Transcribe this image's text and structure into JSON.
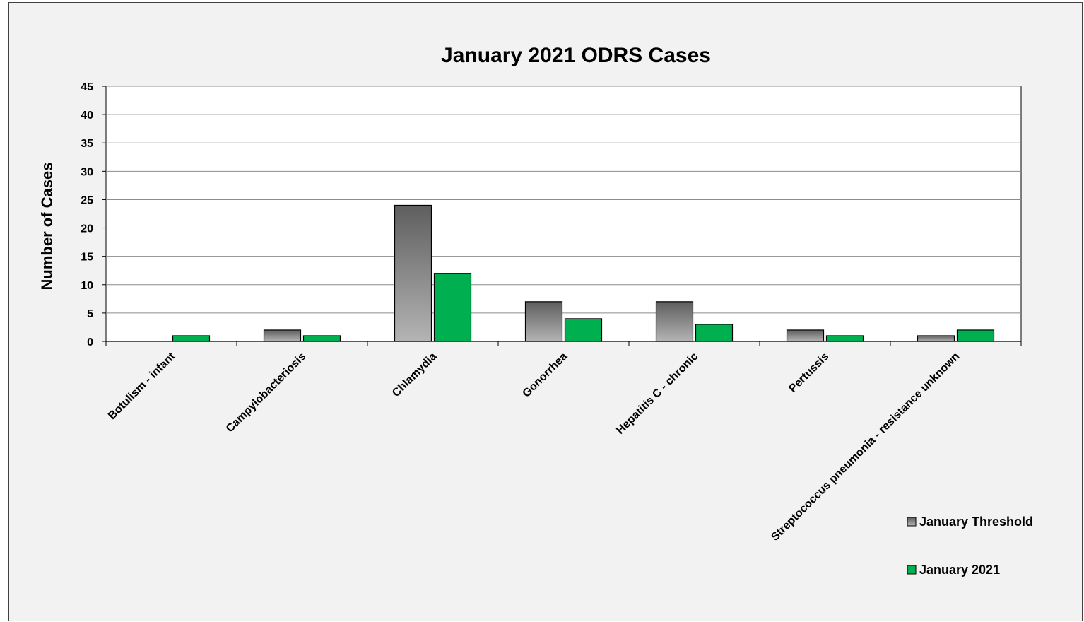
{
  "chart_data": {
    "type": "bar",
    "title": "January 2021 ODRS Cases",
    "xlabel": "",
    "ylabel": "Number of Cases",
    "ylim": [
      0,
      45
    ],
    "yticks": [
      0,
      5,
      10,
      15,
      20,
      25,
      30,
      35,
      40,
      45
    ],
    "grid": true,
    "legend_position": "bottom-right",
    "categories": [
      "Botulism - infant",
      "Campylobacteriosis",
      "Chlamydia",
      "Gonorrhea",
      "Hepatitis C - chronic",
      "Pertussis",
      "Streptococcus pneumonia - resistance unknown"
    ],
    "series": [
      {
        "name": "January Threshold",
        "values": [
          0,
          2,
          24,
          7,
          7,
          2,
          1
        ],
        "color": "#8c8c8c"
      },
      {
        "name": "January 2021",
        "values": [
          1,
          1,
          12,
          4,
          3,
          1,
          2
        ],
        "color": "#00b050"
      }
    ]
  }
}
